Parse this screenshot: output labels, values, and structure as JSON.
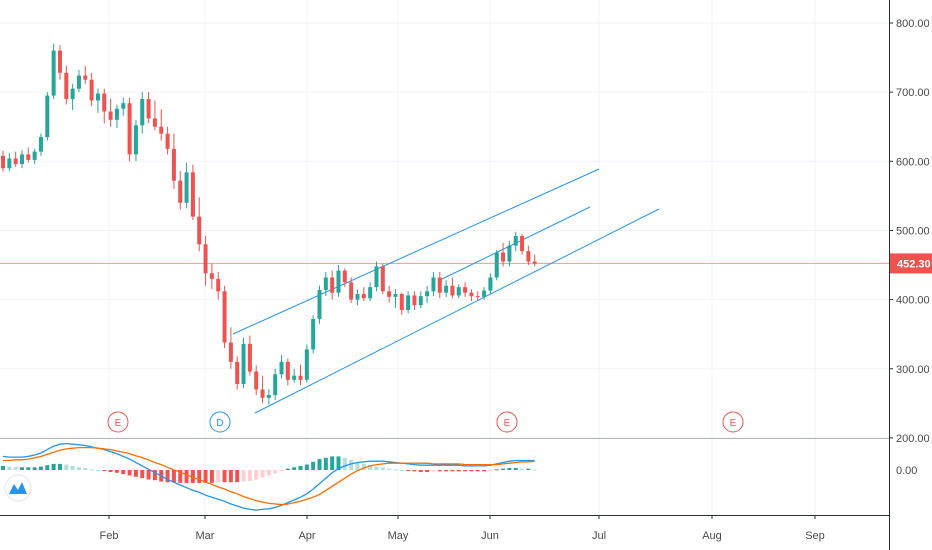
{
  "chart_data": {
    "type": "candlestick",
    "time_axis_labels": [
      "Feb",
      "Mar",
      "Apr",
      "May",
      "Jun",
      "Jul",
      "Aug",
      "Sep"
    ],
    "price_axis": {
      "ticks": [
        200,
        300,
        400,
        500,
        600,
        700,
        800
      ],
      "tick_labels": [
        "200.00",
        "300.00",
        "400.00",
        "500.00",
        "600.00",
        "700.00",
        "800.00"
      ],
      "ylim": [
        200,
        830
      ]
    },
    "last_price": 452.3,
    "last_price_label": "452.30",
    "colors": {
      "up": "#26a69a",
      "down": "#ef5350",
      "trendline": "#2196f3",
      "macd": "#2196f3",
      "signal": "#ff6d00",
      "hist_up_strong": "#26a69a",
      "hist_up_weak": "#b2dfdb",
      "hist_down_strong": "#ef5350",
      "hist_down_weak": "#ffcdd2",
      "price_line": "#ef5350",
      "grid": "#f0f3fa"
    },
    "candles": [
      [
        608,
        615,
        585,
        590
      ],
      [
        590,
        612,
        586,
        604
      ],
      [
        604,
        614,
        592,
        596
      ],
      [
        596,
        616,
        590,
        610
      ],
      [
        610,
        620,
        598,
        602
      ],
      [
        602,
        618,
        596,
        614
      ],
      [
        614,
        640,
        608,
        635
      ],
      [
        635,
        700,
        630,
        695
      ],
      [
        695,
        770,
        690,
        760
      ],
      [
        760,
        768,
        718,
        728
      ],
      [
        728,
        738,
        682,
        690
      ],
      [
        690,
        712,
        674,
        705
      ],
      [
        705,
        732,
        700,
        724
      ],
      [
        724,
        738,
        712,
        718
      ],
      [
        718,
        728,
        680,
        688
      ],
      [
        688,
        705,
        670,
        698
      ],
      [
        698,
        705,
        655,
        672
      ],
      [
        672,
        690,
        650,
        660
      ],
      [
        660,
        682,
        648,
        676
      ],
      [
        676,
        692,
        666,
        684
      ],
      [
        684,
        692,
        600,
        610
      ],
      [
        610,
        660,
        600,
        652
      ],
      [
        652,
        700,
        640,
        690
      ],
      [
        690,
        700,
        655,
        662
      ],
      [
        662,
        688,
        645,
        650
      ],
      [
        650,
        675,
        630,
        640
      ],
      [
        640,
        650,
        610,
        618
      ],
      [
        618,
        640,
        560,
        572
      ],
      [
        572,
        586,
        530,
        540
      ],
      [
        540,
        598,
        532,
        584
      ],
      [
        584,
        595,
        515,
        520
      ],
      [
        520,
        548,
        470,
        480
      ],
      [
        480,
        492,
        420,
        438
      ],
      [
        438,
        452,
        415,
        430
      ],
      [
        430,
        440,
        400,
        412
      ],
      [
        412,
        420,
        330,
        338
      ],
      [
        338,
        360,
        300,
        310
      ],
      [
        310,
        318,
        270,
        278
      ],
      [
        278,
        345,
        272,
        336
      ],
      [
        336,
        348,
        290,
        296
      ],
      [
        296,
        305,
        262,
        270
      ],
      [
        270,
        290,
        250,
        258
      ],
      [
        258,
        270,
        248,
        262
      ],
      [
        262,
        300,
        255,
        292
      ],
      [
        292,
        320,
        286,
        310
      ],
      [
        310,
        315,
        276,
        284
      ],
      [
        284,
        300,
        280,
        290
      ],
      [
        290,
        306,
        276,
        284
      ],
      [
        284,
        335,
        280,
        328
      ],
      [
        328,
        378,
        322,
        372
      ],
      [
        372,
        420,
        365,
        414
      ],
      [
        414,
        440,
        405,
        432
      ],
      [
        432,
        442,
        400,
        410
      ],
      [
        410,
        450,
        404,
        442
      ],
      [
        442,
        445,
        418,
        425
      ],
      [
        425,
        432,
        395,
        400
      ],
      [
        400,
        415,
        392,
        408
      ],
      [
        408,
        418,
        398,
        402
      ],
      [
        402,
        425,
        398,
        418
      ],
      [
        418,
        455,
        412,
        448
      ],
      [
        448,
        452,
        408,
        412
      ],
      [
        412,
        420,
        396,
        404
      ],
      [
        404,
        415,
        388,
        408
      ],
      [
        408,
        410,
        378,
        385
      ],
      [
        385,
        412,
        380,
        406
      ],
      [
        406,
        412,
        385,
        392
      ],
      [
        392,
        412,
        388,
        405
      ],
      [
        405,
        420,
        395,
        412
      ],
      [
        412,
        440,
        405,
        432
      ],
      [
        432,
        440,
        402,
        410
      ],
      [
        410,
        428,
        404,
        420
      ],
      [
        420,
        432,
        402,
        406
      ],
      [
        406,
        422,
        402,
        418
      ],
      [
        418,
        425,
        404,
        410
      ],
      [
        410,
        415,
        398,
        405
      ],
      [
        405,
        412,
        398,
        404
      ],
      [
        404,
        418,
        400,
        413
      ],
      [
        413,
        438,
        408,
        432
      ],
      [
        432,
        472,
        428,
        468
      ],
      [
        468,
        482,
        448,
        455
      ],
      [
        455,
        485,
        448,
        478
      ],
      [
        478,
        498,
        470,
        492
      ],
      [
        492,
        495,
        465,
        470
      ],
      [
        470,
        478,
        450,
        455
      ],
      [
        455,
        465,
        448,
        452
      ]
    ],
    "macd_line": [
      20,
      19,
      19,
      19,
      20,
      22,
      25,
      30,
      35,
      38,
      39,
      38,
      37,
      36,
      34,
      32,
      30,
      27,
      24,
      20,
      16,
      11,
      6,
      1,
      -4,
      -9,
      -14,
      -18,
      -22,
      -26,
      -30,
      -33,
      -37,
      -40,
      -43,
      -46,
      -50,
      -53,
      -56,
      -58,
      -59,
      -58,
      -57,
      -55,
      -52,
      -48,
      -44,
      -40,
      -35,
      -28,
      -20,
      -12,
      -4,
      2,
      6,
      9,
      11,
      12,
      13,
      13,
      13,
      12,
      11,
      10,
      9,
      8,
      7,
      7,
      7,
      7,
      7,
      7,
      7,
      6,
      6,
      6,
      6,
      7,
      9,
      11,
      13,
      14,
      14,
      14,
      14
    ],
    "signal_line": [
      14,
      14,
      15,
      15,
      16,
      18,
      20,
      23,
      26,
      29,
      31,
      32,
      33,
      33,
      33,
      32,
      31,
      30,
      28,
      26,
      24,
      21,
      18,
      15,
      11,
      8,
      4,
      0,
      -3,
      -7,
      -11,
      -14,
      -18,
      -21,
      -25,
      -28,
      -32,
      -35,
      -39,
      -42,
      -45,
      -47,
      -49,
      -50,
      -51,
      -50,
      -48,
      -46,
      -43,
      -40,
      -36,
      -30,
      -24,
      -18,
      -12,
      -6,
      -1,
      3,
      6,
      8,
      9,
      10,
      10,
      10,
      10,
      10,
      10,
      10,
      9,
      9,
      9,
      9,
      9,
      8,
      8,
      8,
      8,
      8,
      8,
      9,
      10,
      11,
      12,
      12,
      13
    ],
    "earnings_badges": [
      "E",
      "D",
      "E",
      "E"
    ],
    "macd_axis_label": "0.00",
    "watermark_logo": "tradingview-logo"
  }
}
